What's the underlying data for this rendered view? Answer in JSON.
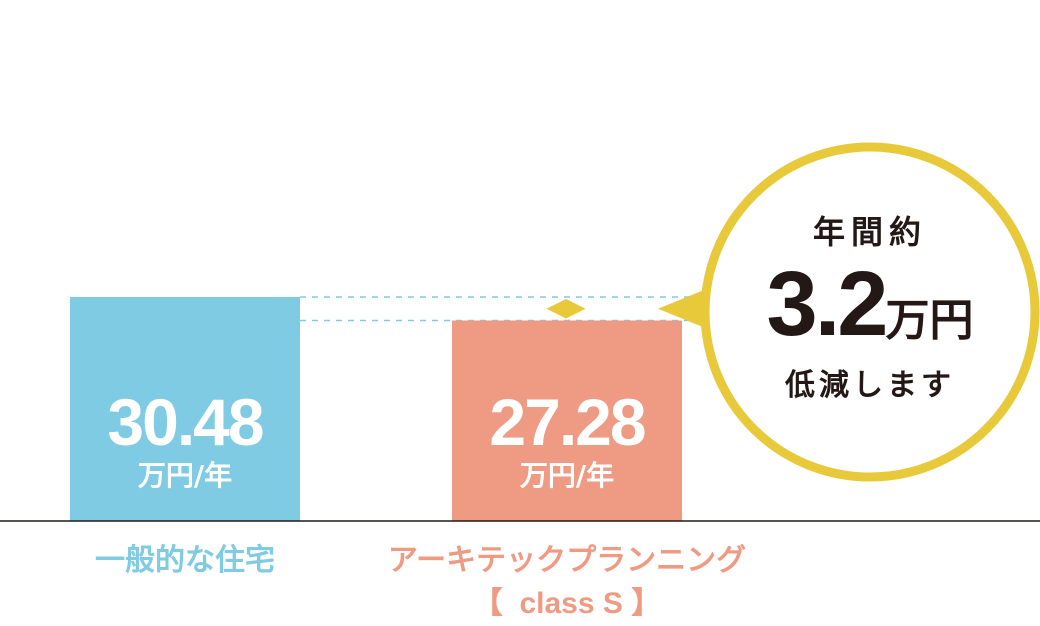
{
  "chart_data": {
    "type": "bar",
    "categories": [
      "一般的な住宅",
      "アーキテックプランニング"
    ],
    "category_sublabels": [
      "",
      "【  class S 】"
    ],
    "values": [
      30.48,
      27.28
    ],
    "value_labels": [
      "30.48",
      "27.28"
    ],
    "unit": "万円/年",
    "colors": [
      "#7ecbe3",
      "#ef9a82"
    ],
    "ylim": [
      0,
      36
    ],
    "grid": false,
    "callout": {
      "top": "年間約",
      "number": "3.2",
      "number_unit": "万円",
      "bottom": "低減します",
      "ring_color": "#e8c93a",
      "arrow_color": "#e8c93a"
    },
    "guide_line_color": "#7ecbe3",
    "axis_color": "#231815"
  }
}
